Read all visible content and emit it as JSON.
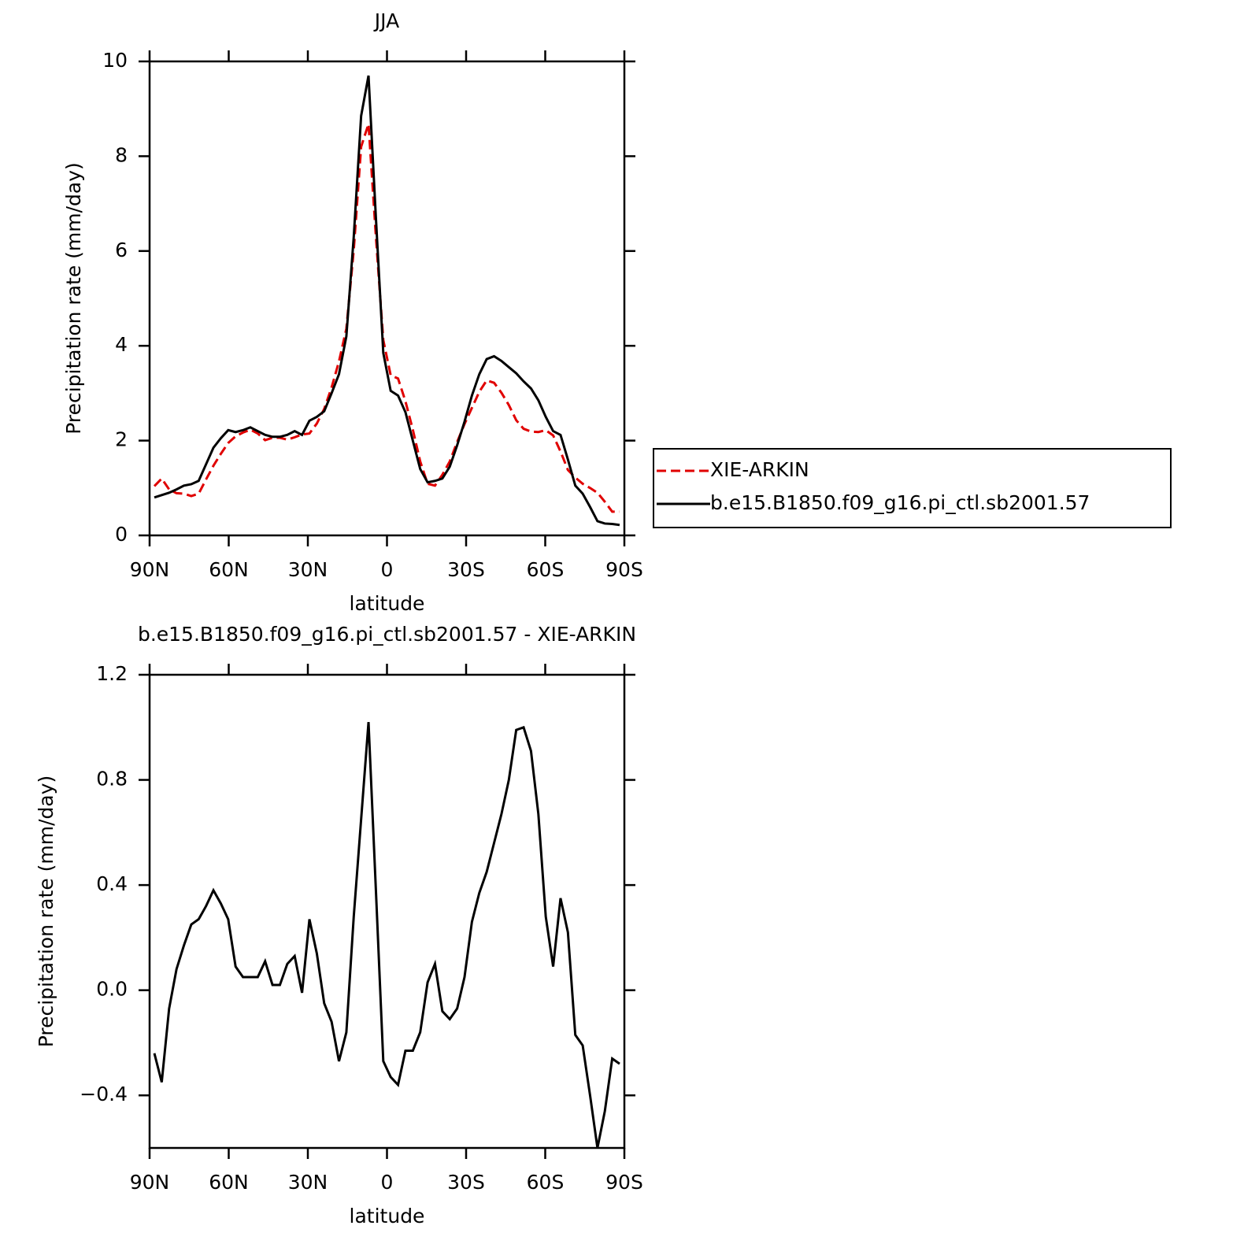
{
  "chart_data": [
    {
      "type": "line",
      "title": "JJA",
      "xlabel": "latitude",
      "ylabel": "Precipitation rate (mm/day)",
      "x": [
        88.2,
        85.4,
        82.6,
        79.8,
        77,
        74.2,
        71.4,
        68.6,
        65.8,
        63,
        60.2,
        57.4,
        54.6,
        51.8,
        49,
        46.2,
        43.4,
        40.6,
        37.8,
        35,
        32.2,
        29.4,
        26.6,
        23.8,
        21,
        18.2,
        15.4,
        12.6,
        9.8,
        7,
        4.2,
        1.4,
        -1.4,
        -4.2,
        -7,
        -9.8,
        -12.6,
        -15.4,
        -18.2,
        -21,
        -23.8,
        -26.6,
        -29.4,
        -32.2,
        -35,
        -37.8,
        -40.6,
        -43.4,
        -46.2,
        -49,
        -51.8,
        -54.6,
        -57.4,
        -60.2,
        -63,
        -65.8,
        -68.6,
        -71.4,
        -74.2,
        -77,
        -79.8,
        -82.6,
        -85.4,
        -88.2
      ],
      "series": [
        {
          "name": "XIE-ARKIN",
          "color": "#e00000",
          "line_style": "dashed",
          "values": [
            1.04,
            1.2,
            0.97,
            0.89,
            0.88,
            0.83,
            0.88,
            1.18,
            1.47,
            1.72,
            1.95,
            2.09,
            2.17,
            2.23,
            2.15,
            2.01,
            2.06,
            2.06,
            2.02,
            2.07,
            2.13,
            2.15,
            2.36,
            2.67,
            3.12,
            3.67,
            4.36,
            6.02,
            8.2,
            8.68,
            6.3,
            4.12,
            3.38,
            3.31,
            2.83,
            2.23,
            1.56,
            1.09,
            1.05,
            1.28,
            1.56,
            1.97,
            2.35,
            2.69,
            3.03,
            3.27,
            3.22,
            3.01,
            2.75,
            2.43,
            2.25,
            2.19,
            2.18,
            2.22,
            2.11,
            1.77,
            1.38,
            1.22,
            1.09,
            1.0,
            0.9,
            0.71,
            0.5,
            0.5
          ]
        },
        {
          "name": "b.e15.B1850.f09_g16.pi_ctl.sb2001.57",
          "color": "#000000",
          "line_style": "solid",
          "values": [
            0.8,
            0.85,
            0.9,
            0.97,
            1.05,
            1.08,
            1.15,
            1.5,
            1.85,
            2.05,
            2.22,
            2.18,
            2.22,
            2.28,
            2.2,
            2.12,
            2.08,
            2.08,
            2.12,
            2.2,
            2.12,
            2.42,
            2.5,
            2.62,
            3.0,
            3.4,
            4.2,
            6.3,
            8.85,
            9.7,
            6.7,
            3.85,
            3.05,
            2.95,
            2.6,
            2.0,
            1.4,
            1.12,
            1.15,
            1.2,
            1.45,
            1.9,
            2.4,
            2.95,
            3.4,
            3.72,
            3.78,
            3.68,
            3.55,
            3.42,
            3.25,
            3.1,
            2.85,
            2.5,
            2.2,
            2.12,
            1.6,
            1.05,
            0.88,
            0.6,
            0.3,
            0.25,
            0.24,
            0.22
          ]
        }
      ],
      "xlim": [
        90,
        -90
      ],
      "xticks": [
        {
          "value": 90,
          "label": "90N"
        },
        {
          "value": 60,
          "label": "60N"
        },
        {
          "value": 30,
          "label": "30N"
        },
        0,
        {
          "value": -30,
          "label": "30S"
        },
        {
          "value": -60,
          "label": "60S"
        },
        {
          "value": -90,
          "label": "90S"
        }
      ],
      "ylim": [
        0,
        10
      ],
      "yticks": [
        0,
        2,
        4,
        6,
        8,
        10
      ],
      "legend": "right"
    },
    {
      "type": "line",
      "title": "b.e15.B1850.f09_g16.pi_ctl.sb2001.57 - XIE-ARKIN",
      "xlabel": "latitude",
      "ylabel": "Precipitation rate (mm/day)",
      "x": [
        88.2,
        85.4,
        82.6,
        79.8,
        77,
        74.2,
        71.4,
        68.6,
        65.8,
        63,
        60.2,
        57.4,
        54.6,
        51.8,
        49,
        46.2,
        43.4,
        40.6,
        37.8,
        35,
        32.2,
        29.4,
        26.6,
        23.8,
        21,
        18.2,
        15.4,
        12.6,
        9.8,
        7,
        4.2,
        1.4,
        -1.4,
        -4.2,
        -7,
        -9.8,
        -12.6,
        -15.4,
        -18.2,
        -21,
        -23.8,
        -26.6,
        -29.4,
        -32.2,
        -35,
        -37.8,
        -40.6,
        -43.4,
        -46.2,
        -49,
        -51.8,
        -54.6,
        -57.4,
        -60.2,
        -63,
        -65.8,
        -68.6,
        -71.4,
        -74.2,
        -77,
        -79.8,
        -82.6,
        -85.4,
        -88.2
      ],
      "series": [
        {
          "color": "#000000",
          "line_style": "solid",
          "values": [
            -0.24,
            -0.35,
            -0.07,
            0.08,
            0.17,
            0.25,
            0.27,
            0.32,
            0.38,
            0.33,
            0.27,
            0.09,
            0.05,
            0.05,
            0.05,
            0.11,
            0.02,
            0.02,
            0.1,
            0.13,
            -0.01,
            0.27,
            0.14,
            -0.05,
            -0.12,
            -0.27,
            -0.16,
            0.28,
            0.65,
            1.02,
            0.38,
            -0.27,
            -0.33,
            -0.36,
            -0.23,
            -0.23,
            -0.16,
            0.03,
            0.1,
            -0.08,
            -0.11,
            -0.07,
            0.05,
            0.26,
            0.37,
            0.45,
            0.56,
            0.67,
            0.8,
            0.99,
            1.0,
            0.91,
            0.67,
            0.28,
            0.09,
            0.35,
            0.22,
            -0.17,
            -0.21,
            -0.4,
            -0.6,
            -0.46,
            -0.26,
            -0.28
          ]
        }
      ],
      "xlim": [
        90,
        -90
      ],
      "xticks": [
        {
          "value": 90,
          "label": "90N"
        },
        {
          "value": 60,
          "label": "60N"
        },
        {
          "value": 30,
          "label": "30N"
        },
        0,
        {
          "value": -30,
          "label": "30S"
        },
        {
          "value": -60,
          "label": "60S"
        },
        {
          "value": -90,
          "label": "90S"
        }
      ],
      "ylim": [
        -0.6,
        1.2
      ],
      "yticks": [
        {
          "value": -0.4,
          "label": "−0.4"
        },
        {
          "value": 0,
          "label": "0.0"
        },
        {
          "value": 0.4,
          "label": "0.4"
        },
        {
          "value": 0.8,
          "label": "0.8"
        },
        1.2
      ]
    }
  ]
}
